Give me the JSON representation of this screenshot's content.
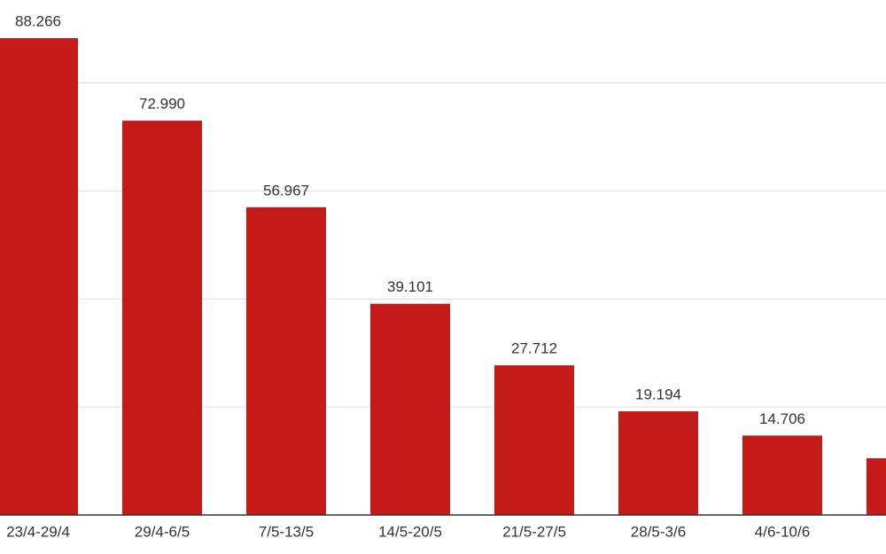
{
  "chart_data": {
    "type": "bar",
    "categories": [
      "23/4-29/4",
      "29/4-6/5",
      "7/5-13/5",
      "14/5-20/5",
      "21/5-27/5",
      "28/5-3/6",
      "4/6-10/6",
      null
    ],
    "values": [
      88266,
      72990,
      56967,
      39101,
      27712,
      19194,
      14706,
      10500
    ],
    "value_labels": [
      "88.266",
      "72.990",
      "56.967",
      "39.101",
      "27.712",
      "19.194",
      "14.706",
      null
    ],
    "color": "#c41a1a",
    "ylim": [
      0,
      95000
    ],
    "yticks": [
      20000,
      40000,
      60000,
      80000
    ],
    "grid": true
  }
}
